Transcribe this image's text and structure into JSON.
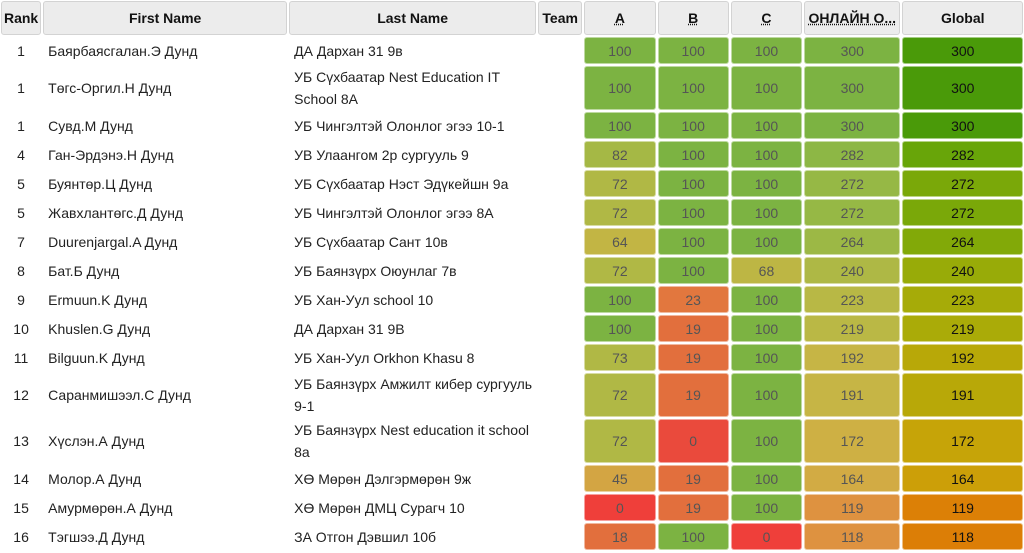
{
  "columns": [
    "Rank",
    "First Name",
    "Last Name",
    "Team",
    "A",
    "B",
    "C",
    "ОНЛАЙН О...",
    "Global"
  ],
  "rows": [
    {
      "rank": "1",
      "first": "Баярбаясгалан.Э Дунд",
      "last": "ДА Дархан 31 9в",
      "team": "",
      "a": "100",
      "b": "100",
      "c": "100",
      "online": "300",
      "global": "300",
      "colors": {
        "a": "#7cb342",
        "b": "#7cb342",
        "c": "#7cb342",
        "online": "#7cb342",
        "global": "#4a9a09"
      }
    },
    {
      "rank": "1",
      "first": "Төгс-Оргил.Н Дунд",
      "last": "УБ Сүхбаатар Nest Education IT School 8A",
      "team": "",
      "a": "100",
      "b": "100",
      "c": "100",
      "online": "300",
      "global": "300",
      "colors": {
        "a": "#7cb342",
        "b": "#7cb342",
        "c": "#7cb342",
        "online": "#7cb342",
        "global": "#4a9a09"
      }
    },
    {
      "rank": "1",
      "first": "Сувд.М Дунд",
      "last": "УБ Чингэлтэй Олонлог эгээ 10-1",
      "team": "",
      "a": "100",
      "b": "100",
      "c": "100",
      "online": "300",
      "global": "300",
      "colors": {
        "a": "#7cb342",
        "b": "#7cb342",
        "c": "#7cb342",
        "online": "#7cb342",
        "global": "#4a9a09"
      }
    },
    {
      "rank": "4",
      "first": "Ган-Эрдэнэ.Н Дунд",
      "last": "УВ Улаангом 2р сургууль 9",
      "team": "",
      "a": "82",
      "b": "100",
      "c": "100",
      "online": "282",
      "global": "282",
      "colors": {
        "a": "#a5b845",
        "b": "#7cb342",
        "c": "#7cb342",
        "online": "#8db745",
        "global": "#68a509"
      }
    },
    {
      "rank": "5",
      "first": "Буянтөр.Ц Дунд",
      "last": "УБ Сүхбаатар Нэст Эдүкейшн 9а",
      "team": "",
      "a": "72",
      "b": "100",
      "c": "100",
      "online": "272",
      "global": "272",
      "colors": {
        "a": "#b0b845",
        "b": "#7cb342",
        "c": "#7cb342",
        "online": "#96b845",
        "global": "#7aa809"
      }
    },
    {
      "rank": "5",
      "first": "Жавхлантөгс.Д Дунд",
      "last": "УБ Чингэлтэй Олонлог эгээ 8А",
      "team": "",
      "a": "72",
      "b": "100",
      "c": "100",
      "online": "272",
      "global": "272",
      "colors": {
        "a": "#b0b845",
        "b": "#7cb342",
        "c": "#7cb342",
        "online": "#96b845",
        "global": "#7aa809"
      }
    },
    {
      "rank": "7",
      "first": "Duurenjargal.A Дунд",
      "last": "УБ Сүхбаатар Сант 10в",
      "team": "",
      "a": "64",
      "b": "100",
      "c": "100",
      "online": "264",
      "global": "264",
      "colors": {
        "a": "#c2b544",
        "b": "#7cb342",
        "c": "#7cb342",
        "online": "#9cb845",
        "global": "#82a908"
      }
    },
    {
      "rank": "8",
      "first": "Бат.Б Дунд",
      "last": "УБ Баянзүрх Оюунлаг 7в",
      "team": "",
      "a": "72",
      "b": "100",
      "c": "68",
      "online": "240",
      "global": "240",
      "colors": {
        "a": "#b0b845",
        "b": "#7cb342",
        "c": "#bdb644",
        "online": "#aeb845",
        "global": "#98ab08"
      }
    },
    {
      "rank": "9",
      "first": "Ermuun.K Дунд",
      "last": "УБ Хан-Уул school 10",
      "team": "",
      "a": "100",
      "b": "23",
      "c": "100",
      "online": "223",
      "global": "223",
      "colors": {
        "a": "#7cb342",
        "b": "#e2773e",
        "c": "#7cb342",
        "online": "#b8b845",
        "global": "#a6ab08"
      }
    },
    {
      "rank": "10",
      "first": "Khuslen.G Дунд",
      "last": "ДА Дархан 31 9В",
      "team": "",
      "a": "100",
      "b": "19",
      "c": "100",
      "online": "219",
      "global": "219",
      "colors": {
        "a": "#7cb342",
        "b": "#e26f3d",
        "c": "#7cb342",
        "online": "#bab845",
        "global": "#aaab08"
      }
    },
    {
      "rank": "11",
      "first": "Bilguun.K Дунд",
      "last": "УБ Хан-Уул Orkhon Khasu 8",
      "team": "",
      "a": "73",
      "b": "19",
      "c": "100",
      "online": "192",
      "global": "192",
      "colors": {
        "a": "#b0b845",
        "b": "#e26f3d",
        "c": "#7cb342",
        "online": "#c6b545",
        "global": "#b8a808"
      }
    },
    {
      "rank": "12",
      "first": "Саранмишээл.С Дунд",
      "last": "УБ Баянзүрх Амжилт кибер сургууль 9-1",
      "team": "",
      "a": "72",
      "b": "19",
      "c": "100",
      "online": "191",
      "global": "191",
      "colors": {
        "a": "#b0b845",
        "b": "#e26f3d",
        "c": "#7cb342",
        "online": "#c6b545",
        "global": "#b8a808"
      }
    },
    {
      "rank": "13",
      "first": "Хүслэн.А Дунд",
      "last": "УБ Баянзүрх Nest education it school 8a",
      "team": "",
      "a": "72",
      "b": "0",
      "c": "100",
      "online": "172",
      "global": "172",
      "colors": {
        "a": "#b0b845",
        "b": "#ea4a3c",
        "c": "#7cb342",
        "online": "#ceb044",
        "global": "#c6a408"
      }
    },
    {
      "rank": "14",
      "first": "Молор.А Дунд",
      "last": "ХӨ Мөрөн Дэлгэрмөрөн 9ж",
      "team": "",
      "a": "45",
      "b": "19",
      "c": "100",
      "online": "164",
      "global": "164",
      "colors": {
        "a": "#d3a543",
        "b": "#e26f3d",
        "c": "#7cb342",
        "online": "#d2ab44",
        "global": "#cc9f08"
      }
    },
    {
      "rank": "15",
      "first": "Амурмөрөн.А Дунд",
      "last": "ХӨ Мөрөн ДМЦ Сурагч 10",
      "team": "",
      "a": "0",
      "b": "19",
      "c": "100",
      "online": "119",
      "global": "119",
      "colors": {
        "a": "#ef3f3a",
        "b": "#e26f3d",
        "c": "#7cb342",
        "online": "#de9240",
        "global": "#dc8006"
      }
    },
    {
      "rank": "16",
      "first": "Тэгшээ.Д Дунд",
      "last": "ЗА Отгон Дэвшил 10б",
      "team": "",
      "a": "18",
      "b": "100",
      "c": "0",
      "online": "118",
      "global": "118",
      "colors": {
        "a": "#e26f3d",
        "b": "#7cb342",
        "c": "#ef3f3a",
        "online": "#de9240",
        "global": "#dc7e06"
      }
    }
  ]
}
